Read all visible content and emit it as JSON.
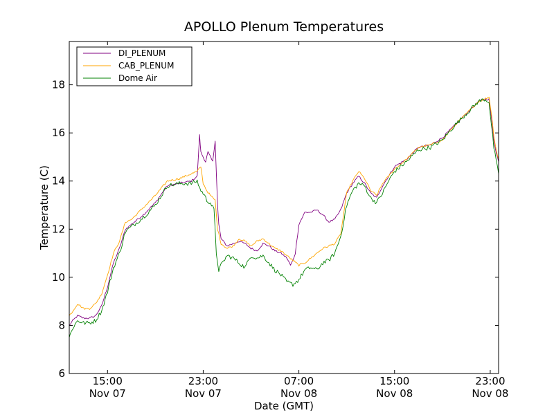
{
  "chart_data": {
    "type": "line",
    "title": "APOLLO Plenum Temperatures",
    "xlabel": "Date (GMT)",
    "ylabel": "Temperature (C)",
    "x_unit": "hours since Nov 07 00:00 GMT",
    "xlim": [
      11.8,
      47.7
    ],
    "ylim": [
      6,
      19.8
    ],
    "grid": false,
    "legend_position": "top-left",
    "y_ticks": [
      6,
      8,
      10,
      12,
      14,
      16,
      18
    ],
    "x_ticks": [
      {
        "hour": 15,
        "time": "15:00",
        "date": "Nov 07"
      },
      {
        "hour": 23,
        "time": "23:00",
        "date": "Nov 07"
      },
      {
        "hour": 31,
        "time": "07:00",
        "date": "Nov 08"
      },
      {
        "hour": 39,
        "time": "15:00",
        "date": "Nov 08"
      },
      {
        "hour": 47,
        "time": "23:00",
        "date": "Nov 08"
      }
    ],
    "series": [
      {
        "name": "DI_PLENUM",
        "color": "#800080",
        "x": [
          11.8,
          12.1,
          12.5,
          13.0,
          13.5,
          14.0,
          14.5,
          15.0,
          15.5,
          16.0,
          16.5,
          17.0,
          18.0,
          19.0,
          20.0,
          21.0,
          22.0,
          22.5,
          22.7,
          22.8,
          23.0,
          23.2,
          23.4,
          23.6,
          23.8,
          24.0,
          24.2,
          24.3,
          24.5,
          25.0,
          25.5,
          26.0,
          26.5,
          27.0,
          27.5,
          28.0,
          28.5,
          29.0,
          29.5,
          30.0,
          30.3,
          30.5,
          30.7,
          31.0,
          31.5,
          32.0,
          32.5,
          33.0,
          33.5,
          34.0,
          34.5,
          35.0,
          35.5,
          36.0,
          36.5,
          37.0,
          37.5,
          38.0,
          38.5,
          39.0,
          40.0,
          41.0,
          42.0,
          43.0,
          44.0,
          45.0,
          46.0,
          46.5,
          46.9,
          47.1,
          47.3,
          47.5,
          47.7
        ],
        "values": [
          8.0,
          8.2,
          8.4,
          8.3,
          8.3,
          8.4,
          8.8,
          9.6,
          10.6,
          11.2,
          12.0,
          12.2,
          12.6,
          13.1,
          13.8,
          13.9,
          14.0,
          14.2,
          15.9,
          15.2,
          15.0,
          14.8,
          15.2,
          15.0,
          14.8,
          15.7,
          13.0,
          12.2,
          11.6,
          11.3,
          11.4,
          11.5,
          11.4,
          11.2,
          11.1,
          11.4,
          11.3,
          11.1,
          11.0,
          10.8,
          10.5,
          10.7,
          11.0,
          12.2,
          12.7,
          12.7,
          12.8,
          12.6,
          12.3,
          12.4,
          12.8,
          13.5,
          13.9,
          14.2,
          13.9,
          13.5,
          13.3,
          13.8,
          14.2,
          14.6,
          14.9,
          15.4,
          15.5,
          15.8,
          16.3,
          16.8,
          17.3,
          17.4,
          17.4,
          16.6,
          15.7,
          15.2,
          14.8
        ]
      },
      {
        "name": "CAB_PLENUM",
        "color": "#ffa500",
        "x": [
          11.8,
          12.1,
          12.5,
          13.0,
          13.5,
          14.0,
          14.5,
          15.0,
          15.5,
          16.0,
          16.5,
          17.0,
          18.0,
          19.0,
          20.0,
          21.0,
          22.0,
          22.5,
          22.8,
          23.0,
          23.3,
          23.6,
          24.0,
          24.2,
          24.5,
          25.0,
          25.5,
          26.0,
          26.5,
          27.0,
          27.5,
          28.0,
          28.5,
          29.0,
          29.5,
          30.0,
          30.5,
          31.0,
          31.5,
          32.0,
          32.5,
          33.0,
          33.5,
          34.0,
          34.5,
          35.0,
          35.5,
          36.0,
          36.5,
          37.0,
          37.5,
          38.0,
          38.5,
          39.0,
          40.0,
          41.0,
          42.0,
          43.0,
          44.0,
          45.0,
          46.0,
          46.5,
          46.9,
          47.1,
          47.3,
          47.5,
          47.7
        ],
        "values": [
          8.4,
          8.6,
          8.9,
          8.7,
          8.7,
          8.9,
          9.3,
          10.1,
          11.0,
          11.5,
          12.3,
          12.4,
          12.9,
          13.4,
          14.0,
          14.1,
          14.3,
          14.4,
          14.6,
          13.9,
          13.6,
          13.4,
          13.2,
          12.0,
          11.4,
          11.2,
          11.3,
          11.6,
          11.5,
          11.3,
          11.5,
          11.6,
          11.4,
          11.2,
          11.1,
          10.9,
          10.7,
          10.5,
          10.6,
          10.8,
          11.0,
          11.2,
          11.3,
          11.4,
          11.8,
          13.5,
          14.0,
          14.4,
          14.1,
          13.6,
          13.4,
          13.9,
          14.2,
          14.5,
          14.9,
          15.4,
          15.5,
          15.7,
          16.3,
          16.8,
          17.3,
          17.4,
          17.5,
          16.8,
          15.9,
          15.3,
          14.9
        ]
      },
      {
        "name": "Dome Air",
        "color": "#008000",
        "x": [
          11.8,
          12.1,
          12.5,
          13.0,
          13.5,
          14.0,
          14.5,
          15.0,
          15.5,
          16.0,
          16.5,
          17.0,
          18.0,
          19.0,
          20.0,
          21.0,
          22.0,
          22.5,
          22.8,
          23.0,
          23.3,
          23.6,
          23.9,
          24.1,
          24.3,
          24.5,
          25.0,
          25.5,
          26.0,
          26.5,
          27.0,
          27.5,
          28.0,
          28.5,
          29.0,
          29.5,
          30.0,
          30.5,
          31.0,
          31.5,
          32.0,
          32.5,
          33.0,
          33.5,
          34.0,
          34.5,
          35.0,
          35.5,
          36.0,
          36.5,
          37.0,
          37.5,
          38.0,
          38.5,
          39.0,
          40.0,
          41.0,
          42.0,
          43.0,
          44.0,
          45.0,
          46.0,
          46.5,
          46.9,
          47.1,
          47.3,
          47.5,
          47.7
        ],
        "values": [
          7.5,
          7.9,
          8.2,
          8.1,
          8.1,
          8.2,
          8.6,
          9.4,
          10.4,
          11.0,
          11.9,
          12.1,
          12.5,
          13.0,
          13.8,
          13.9,
          13.9,
          14.0,
          13.6,
          13.5,
          13.2,
          13.1,
          12.8,
          11.0,
          10.3,
          10.5,
          10.9,
          10.8,
          10.6,
          10.4,
          10.9,
          10.8,
          10.9,
          10.6,
          10.3,
          10.1,
          9.8,
          9.7,
          9.9,
          10.3,
          10.4,
          10.3,
          10.6,
          10.7,
          11.0,
          11.7,
          13.0,
          13.6,
          13.9,
          13.8,
          13.3,
          13.1,
          13.5,
          14.0,
          14.4,
          14.8,
          15.3,
          15.4,
          15.7,
          16.3,
          16.8,
          17.3,
          17.4,
          17.3,
          16.3,
          15.4,
          14.8,
          14.3
        ]
      }
    ]
  }
}
